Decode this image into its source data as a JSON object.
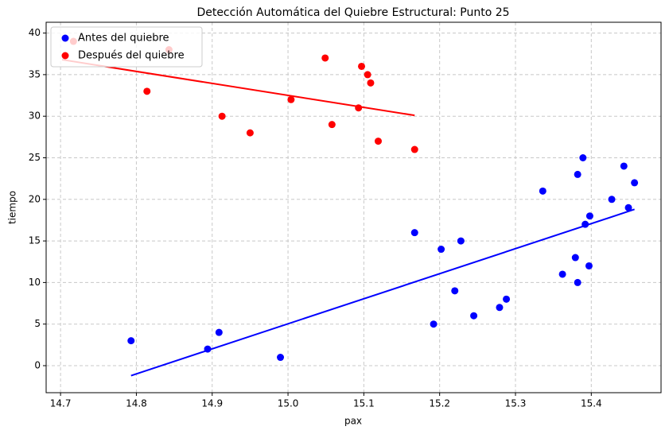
{
  "chart_data": {
    "type": "scatter",
    "title": "Detección Automática del Quiebre Estructural: Punto 25",
    "x_label": "pax",
    "y_label": "tiempo",
    "xlim": [
      14.681,
      15.492
    ],
    "ylim": [
      -3.25,
      41.3
    ],
    "xticks": [
      14.7,
      14.8,
      14.9,
      15.0,
      15.1,
      15.2,
      15.3,
      15.4
    ],
    "yticks": [
      0,
      5,
      10,
      15,
      20,
      25,
      30,
      35,
      40
    ],
    "grid": true,
    "legend": "upper-left",
    "series": [
      {
        "name": "Antes del quiebre",
        "color": "#0000ff",
        "x": [
          14.793,
          14.894,
          14.909,
          14.99,
          15.167,
          15.192,
          15.202,
          15.22,
          15.228,
          15.245,
          15.279,
          15.288,
          15.336,
          15.362,
          15.379,
          15.382,
          15.382,
          15.389,
          15.392,
          15.397,
          15.398,
          15.427,
          15.443,
          15.449,
          15.457
        ],
        "values": [
          3,
          2,
          4,
          1,
          16,
          5,
          14,
          9,
          15,
          6,
          7,
          8,
          21,
          11,
          13,
          23,
          10,
          25,
          17,
          12,
          18,
          20,
          24,
          19,
          22
        ]
      },
      {
        "name": "Después del quiebre",
        "color": "#ff0000",
        "x": [
          14.717,
          14.814,
          14.843,
          14.913,
          14.95,
          15.004,
          15.049,
          15.058,
          15.093,
          15.097,
          15.105,
          15.109,
          15.119,
          15.167
        ],
        "values": [
          39,
          33,
          38,
          30,
          28,
          32,
          37,
          29,
          31,
          36,
          35,
          34,
          27,
          26
        ]
      }
    ],
    "fit_lines": [
      {
        "color": "#0000ff",
        "x": [
          14.793,
          15.457
        ],
        "values": [
          -1.2,
          18.8
        ]
      },
      {
        "color": "#ff0000",
        "x": [
          14.702,
          15.167
        ],
        "values": [
          36.8,
          30.1
        ]
      }
    ]
  }
}
